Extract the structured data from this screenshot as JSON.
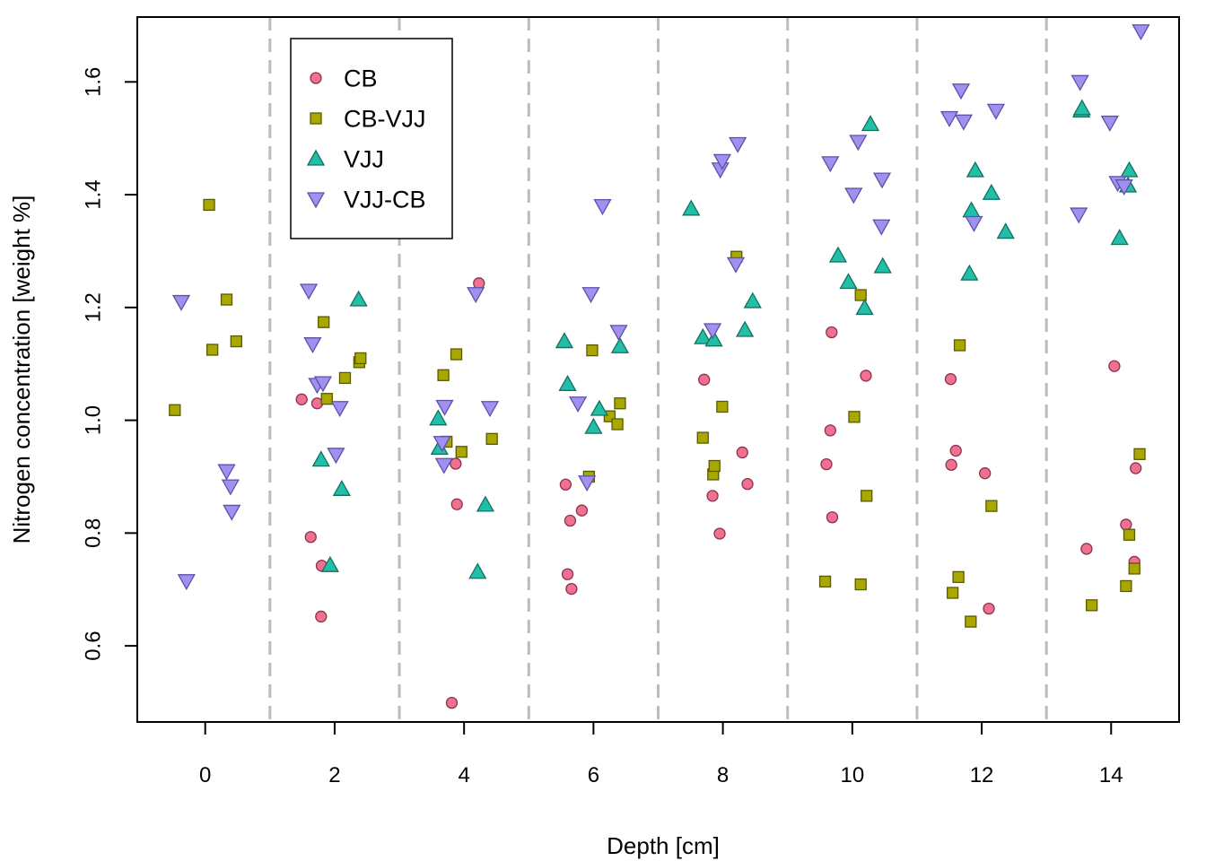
{
  "chart_data": {
    "type": "scatter",
    "xlabel": "Depth [cm]",
    "ylabel": "Nitrogen concentration [weight %]",
    "xlim": [
      -1.05,
      15.05
    ],
    "ylim": [
      0.465,
      1.715
    ],
    "x_ticks": [
      {
        "value": 0,
        "label": "0"
      },
      {
        "value": 2,
        "label": "2"
      },
      {
        "value": 4,
        "label": "4"
      },
      {
        "value": 6,
        "label": "6"
      },
      {
        "value": 8,
        "label": "8"
      },
      {
        "value": 10,
        "label": "10"
      },
      {
        "value": 12,
        "label": "12"
      },
      {
        "value": 14,
        "label": "14"
      }
    ],
    "y_ticks": [
      {
        "value": 0.6,
        "label": "0.6"
      },
      {
        "value": 0.8,
        "label": "0.8"
      },
      {
        "value": 1.0,
        "label": "1.0"
      },
      {
        "value": 1.2,
        "label": "1.2"
      },
      {
        "value": 1.4,
        "label": "1.4"
      },
      {
        "value": 1.6,
        "label": "1.6"
      }
    ],
    "vlines": [
      1,
      3,
      5,
      7,
      9,
      11,
      13
    ],
    "legend_position": "top-left",
    "series": [
      {
        "name": "CB",
        "marker": "circle",
        "fill": "#F07090",
        "stroke": "#8C3050",
        "points": [
          [
            1.49,
            1.037
          ],
          [
            1.63,
            0.793
          ],
          [
            1.73,
            1.03
          ],
          [
            1.8,
            0.742
          ],
          [
            1.79,
            0.652
          ],
          [
            3.81,
            0.499
          ],
          [
            3.87,
            0.923
          ],
          [
            3.89,
            0.851
          ],
          [
            4.23,
            1.243
          ],
          [
            5.57,
            0.886
          ],
          [
            5.6,
            0.727
          ],
          [
            5.64,
            0.822
          ],
          [
            5.66,
            0.701
          ],
          [
            5.82,
            0.84
          ],
          [
            7.71,
            1.072
          ],
          [
            7.84,
            0.866
          ],
          [
            7.95,
            0.799
          ],
          [
            8.3,
            0.943
          ],
          [
            8.38,
            0.887
          ],
          [
            9.6,
            0.922
          ],
          [
            9.66,
            0.982
          ],
          [
            9.69,
            0.828
          ],
          [
            9.68,
            1.156
          ],
          [
            10.21,
            1.079
          ],
          [
            11.52,
            1.073
          ],
          [
            11.53,
            0.921
          ],
          [
            11.6,
            0.946
          ],
          [
            12.05,
            0.906
          ],
          [
            12.11,
            0.666
          ],
          [
            13.62,
            0.772
          ],
          [
            14.05,
            1.096
          ],
          [
            14.23,
            0.815
          ],
          [
            14.36,
            0.749
          ],
          [
            14.38,
            0.915
          ]
        ]
      },
      {
        "name": "CB-VJJ",
        "marker": "square",
        "fill": "#A8A800",
        "stroke": "#5A5A00",
        "points": [
          [
            -0.47,
            1.018
          ],
          [
            0.06,
            1.382
          ],
          [
            0.11,
            1.125
          ],
          [
            0.33,
            1.214
          ],
          [
            0.48,
            1.14
          ],
          [
            1.83,
            1.174
          ],
          [
            1.88,
            1.038
          ],
          [
            2.16,
            1.075
          ],
          [
            2.38,
            1.103
          ],
          [
            2.4,
            1.11
          ],
          [
            3.68,
            1.08
          ],
          [
            3.73,
            0.962
          ],
          [
            3.88,
            1.117
          ],
          [
            3.96,
            0.944
          ],
          [
            4.43,
            0.967
          ],
          [
            5.93,
            0.9
          ],
          [
            5.98,
            1.124
          ],
          [
            6.25,
            1.007
          ],
          [
            6.37,
            0.993
          ],
          [
            6.41,
            1.03
          ],
          [
            7.69,
            0.969
          ],
          [
            7.85,
            0.904
          ],
          [
            7.87,
            0.919
          ],
          [
            7.99,
            1.024
          ],
          [
            8.21,
            1.29
          ],
          [
            9.58,
            0.714
          ],
          [
            10.03,
            1.006
          ],
          [
            10.13,
            0.709
          ],
          [
            10.13,
            1.222
          ],
          [
            10.22,
            0.866
          ],
          [
            11.55,
            0.694
          ],
          [
            11.64,
            0.722
          ],
          [
            11.66,
            1.133
          ],
          [
            11.83,
            0.643
          ],
          [
            12.15,
            0.848
          ],
          [
            13.7,
            0.672
          ],
          [
            14.23,
            0.706
          ],
          [
            14.28,
            0.797
          ],
          [
            14.36,
            0.737
          ],
          [
            14.44,
            0.94
          ]
        ]
      },
      {
        "name": "VJJ",
        "marker": "triangle-up",
        "fill": "#22BEA8",
        "stroke": "#137060",
        "points": [
          [
            1.79,
            0.93
          ],
          [
            1.93,
            0.743
          ],
          [
            2.11,
            0.878
          ],
          [
            2.37,
            1.214
          ],
          [
            3.6,
            1.003
          ],
          [
            3.62,
            0.951
          ],
          [
            4.21,
            0.731
          ],
          [
            4.33,
            0.85
          ],
          [
            5.55,
            1.14
          ],
          [
            5.6,
            1.064
          ],
          [
            6.0,
            0.988
          ],
          [
            6.09,
            1.02
          ],
          [
            6.41,
            1.131
          ],
          [
            7.51,
            1.375
          ],
          [
            7.69,
            1.147
          ],
          [
            7.86,
            1.143
          ],
          [
            8.34,
            1.16
          ],
          [
            8.46,
            1.211
          ],
          [
            9.78,
            1.292
          ],
          [
            9.94,
            1.245
          ],
          [
            10.19,
            1.199
          ],
          [
            10.28,
            1.525
          ],
          [
            10.47,
            1.273
          ],
          [
            11.81,
            1.26
          ],
          [
            11.84,
            1.372
          ],
          [
            11.9,
            1.443
          ],
          [
            12.15,
            1.403
          ],
          [
            12.37,
            1.334
          ],
          [
            13.54,
            1.549
          ],
          [
            13.55,
            1.553
          ],
          [
            14.13,
            1.323
          ],
          [
            14.26,
            1.416
          ],
          [
            14.28,
            1.443
          ]
        ]
      },
      {
        "name": "VJJ-CB",
        "marker": "triangle-down",
        "fill": "#A090F0",
        "stroke": "#6050A8",
        "points": [
          [
            -0.37,
            1.21
          ],
          [
            -0.29,
            0.715
          ],
          [
            0.33,
            0.91
          ],
          [
            0.39,
            0.883
          ],
          [
            0.41,
            0.838
          ],
          [
            1.6,
            1.23
          ],
          [
            1.66,
            1.135
          ],
          [
            1.73,
            1.063
          ],
          [
            1.82,
            1.066
          ],
          [
            2.02,
            0.939
          ],
          [
            2.08,
            1.022
          ],
          [
            3.66,
            0.96
          ],
          [
            3.69,
            0.921
          ],
          [
            3.7,
            1.024
          ],
          [
            4.18,
            1.224
          ],
          [
            4.4,
            1.022
          ],
          [
            5.76,
            1.03
          ],
          [
            5.9,
            0.89
          ],
          [
            5.96,
            1.224
          ],
          [
            6.14,
            1.38
          ],
          [
            6.39,
            1.157
          ],
          [
            7.84,
            1.16
          ],
          [
            7.96,
            1.445
          ],
          [
            7.99,
            1.46
          ],
          [
            8.2,
            1.277
          ],
          [
            8.23,
            1.49
          ],
          [
            9.66,
            1.456
          ],
          [
            10.02,
            1.4
          ],
          [
            10.09,
            1.494
          ],
          [
            10.46,
            1.427
          ],
          [
            10.45,
            1.344
          ],
          [
            11.5,
            1.536
          ],
          [
            11.68,
            1.585
          ],
          [
            11.72,
            1.53
          ],
          [
            11.88,
            1.35
          ],
          [
            12.22,
            1.549
          ],
          [
            13.5,
            1.365
          ],
          [
            13.52,
            1.6
          ],
          [
            13.98,
            1.528
          ],
          [
            14.1,
            1.421
          ],
          [
            14.2,
            1.415
          ],
          [
            14.46,
            1.69
          ]
        ]
      }
    ]
  }
}
